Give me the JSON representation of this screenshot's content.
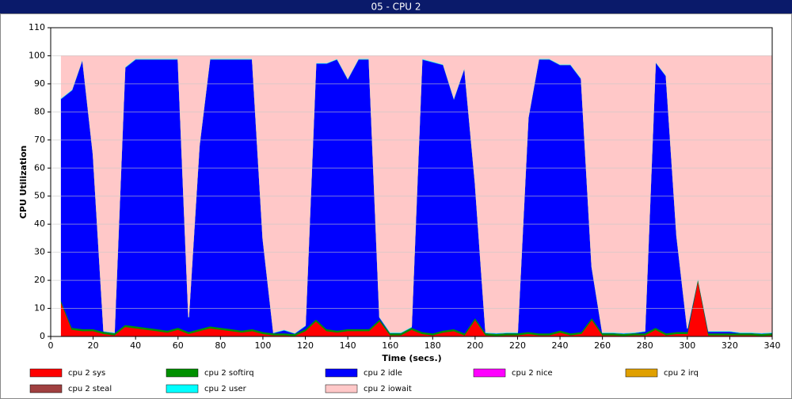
{
  "chart_data": {
    "type": "stacked_area",
    "title": "05 - CPU 2",
    "x_label": "Time (secs.)",
    "y_label": "CPU Utilization",
    "x": [
      5,
      10,
      15,
      20,
      25,
      30,
      35,
      40,
      45,
      50,
      55,
      60,
      65,
      70,
      75,
      80,
      85,
      90,
      95,
      100,
      105,
      110,
      115,
      120,
      125,
      130,
      135,
      140,
      145,
      150,
      155,
      160,
      165,
      170,
      175,
      180,
      185,
      190,
      195,
      200,
      205,
      210,
      215,
      220,
      225,
      230,
      235,
      240,
      245,
      250,
      255,
      260,
      265,
      270,
      275,
      280,
      285,
      290,
      295,
      300,
      305,
      310,
      315,
      320,
      325,
      330,
      335,
      340
    ],
    "xlim": [
      0,
      340
    ],
    "xticks": [
      0,
      20,
      40,
      60,
      80,
      100,
      120,
      140,
      160,
      180,
      200,
      220,
      240,
      260,
      280,
      300,
      320,
      340
    ],
    "ylim": [
      0,
      110
    ],
    "yticks": [
      0,
      10,
      20,
      30,
      40,
      50,
      60,
      70,
      80,
      90,
      100,
      110
    ],
    "grid": true,
    "series": [
      {
        "name": "cpu 2 sys",
        "color": "#ff0000",
        "values": [
          12,
          2.5,
          2,
          2,
          1,
          0.5,
          3.5,
          3,
          2.5,
          2,
          1.5,
          2.5,
          1,
          2,
          3,
          2.5,
          2,
          1.5,
          2,
          1,
          0.5,
          0.5,
          0.3,
          2,
          5.5,
          2,
          1.5,
          2,
          2,
          2,
          5.5,
          0.5,
          0.5,
          2.5,
          1,
          0.5,
          1.5,
          2,
          0.5,
          6,
          0.5,
          0.3,
          0.5,
          0.5,
          1,
          0.5,
          0.5,
          1.5,
          0.5,
          1,
          6,
          0.5,
          0.5,
          0.3,
          0.5,
          0.5,
          2.5,
          0.5,
          1,
          1,
          20,
          0.5,
          0.5,
          0.5,
          0.5,
          0.5,
          0.3,
          0.5
        ]
      },
      {
        "name": "cpu 2 softirq",
        "color": "#009000",
        "values": [
          0.7,
          0.7,
          0.7,
          0.7,
          0.7,
          0.7,
          0.7,
          0.7,
          0.7,
          0.7,
          0.7,
          0.7,
          0.7,
          0.7,
          0.7,
          0.7,
          0.7,
          0.7,
          0.7,
          0.7,
          0.7,
          0.7,
          0.7,
          0.7,
          0.7,
          0.7,
          0.7,
          0.7,
          0.7,
          0.7,
          0.7,
          0.7,
          0.7,
          0.7,
          0.7,
          0.7,
          0.7,
          0.7,
          0.7,
          0.7,
          0.7,
          0.7,
          0.7,
          0.7,
          0.7,
          0.7,
          0.7,
          0.7,
          0.7,
          0.7,
          0.7,
          0.7,
          0.7,
          0.7,
          0.7,
          0.7,
          0.7,
          0.7,
          0.7,
          0.7,
          0.7,
          0.7,
          0.7,
          0.7,
          0.7,
          0.7,
          0.7,
          0.7
        ]
      },
      {
        "name": "cpu 2 idle",
        "color": "#0000ff",
        "values": [
          72.1,
          84.6,
          96.1,
          62.1,
          0.1,
          0.1,
          91.6,
          95.1,
          95.6,
          96.1,
          96.6,
          95.6,
          5.1,
          65.1,
          95.1,
          95.6,
          96.1,
          96.6,
          96.1,
          33.1,
          0.1,
          1.1,
          0.1,
          1.1,
          91.1,
          94.6,
          96.6,
          89.1,
          96.1,
          96.1,
          0.6,
          0.1,
          0.1,
          0.1,
          97.1,
          96.6,
          94.6,
          82.1,
          94.6,
          48.1,
          0.1,
          0.1,
          0.1,
          0.1,
          76.1,
          97.6,
          97.6,
          94.6,
          95.6,
          90.1,
          18.1,
          0.1,
          0.1,
          0.1,
          0.1,
          0.6,
          94.6,
          91.6,
          34.1,
          1.1,
          0.1,
          0.6,
          0.6,
          0.6,
          0.1,
          0.1,
          0.1,
          0.1
        ]
      },
      {
        "name": "cpu 2 nice",
        "color": "#ff00ff",
        "values": [
          0,
          0,
          0,
          0,
          0,
          0,
          0,
          0,
          0,
          0,
          0,
          0,
          0,
          0,
          0,
          0,
          0,
          0,
          0,
          0,
          0,
          0,
          0,
          0,
          0,
          0,
          0,
          0,
          0,
          0,
          0,
          0,
          0,
          0,
          0,
          0,
          0,
          0,
          0,
          0,
          0,
          0,
          0,
          0,
          0,
          0,
          0,
          0,
          0,
          0,
          0,
          0,
          0,
          0,
          0,
          0,
          0,
          0,
          0,
          0,
          0,
          0,
          0,
          0,
          0,
          0,
          0,
          0
        ]
      },
      {
        "name": "cpu 2 irq",
        "color": "#e0a000",
        "values": [
          0,
          0,
          0,
          0,
          0,
          0,
          0,
          0,
          0,
          0,
          0,
          0,
          0,
          0,
          0,
          0,
          0,
          0,
          0,
          0,
          0,
          0,
          0,
          0,
          0,
          0,
          0,
          0,
          0,
          0,
          0,
          0,
          0,
          0,
          0,
          0,
          0,
          0,
          0,
          0,
          0,
          0,
          0,
          0,
          0,
          0,
          0,
          0,
          0,
          0,
          0,
          0,
          0,
          0,
          0,
          0,
          0,
          0,
          0,
          0,
          0,
          0,
          0,
          0,
          0,
          0,
          0,
          0
        ]
      },
      {
        "name": "cpu 2 steal",
        "color": "#a04040",
        "values": [
          0,
          0,
          0,
          0,
          0,
          0,
          0,
          0,
          0,
          0,
          0,
          0,
          0,
          0,
          0,
          0,
          0,
          0,
          0,
          0,
          0,
          0,
          0,
          0,
          0,
          0,
          0,
          0,
          0,
          0,
          0,
          0,
          0,
          0,
          0,
          0,
          0,
          0,
          0,
          0,
          0,
          0,
          0,
          0,
          0,
          0,
          0,
          0,
          0,
          0,
          0,
          0,
          0,
          0,
          0,
          0,
          0,
          0,
          0,
          0,
          0,
          0,
          0,
          0,
          0,
          0,
          0,
          0
        ]
      },
      {
        "name": "cpu 2 user",
        "color": "#00ffff",
        "values": [
          0.2,
          0.2,
          0.2,
          0.2,
          0.2,
          0.2,
          0.2,
          0.2,
          0.2,
          0.2,
          0.2,
          0.2,
          0.2,
          0.2,
          0.2,
          0.2,
          0.2,
          0.2,
          0.2,
          0.2,
          0.2,
          0.2,
          0.2,
          0.2,
          0.2,
          0.2,
          0.2,
          0.2,
          0.2,
          0.2,
          0.2,
          0.2,
          0.2,
          0.2,
          0.2,
          0.2,
          0.2,
          0.2,
          0.2,
          0.2,
          0.2,
          0.2,
          0.2,
          0.2,
          0.2,
          0.2,
          0.2,
          0.2,
          0.2,
          0.2,
          0.2,
          0.2,
          0.2,
          0.2,
          0.2,
          0.2,
          0.2,
          0.2,
          0.2,
          0.2,
          0.2,
          0.2,
          0.2,
          0.2,
          0.2,
          0.2,
          0.2,
          0.2
        ]
      },
      {
        "name": "cpu 2 iowait",
        "color": "#ffc8c8",
        "values": [
          15,
          12,
          1,
          35,
          98,
          98.5,
          4,
          1,
          1,
          1,
          1,
          1,
          93,
          32,
          1,
          1,
          1,
          1,
          1,
          65,
          98.5,
          97.5,
          98.7,
          96,
          2.5,
          2.5,
          1,
          8,
          1,
          1,
          93,
          98.5,
          98.5,
          96.5,
          1,
          2,
          3,
          15,
          4,
          45,
          98.5,
          98.7,
          98.5,
          98.5,
          22,
          1,
          1,
          3,
          3,
          8,
          75,
          98.5,
          98.5,
          98.7,
          98.5,
          98,
          2,
          7,
          64,
          97,
          79,
          98,
          98,
          98,
          98.5,
          98.5,
          98.7,
          98.5
        ]
      }
    ]
  }
}
